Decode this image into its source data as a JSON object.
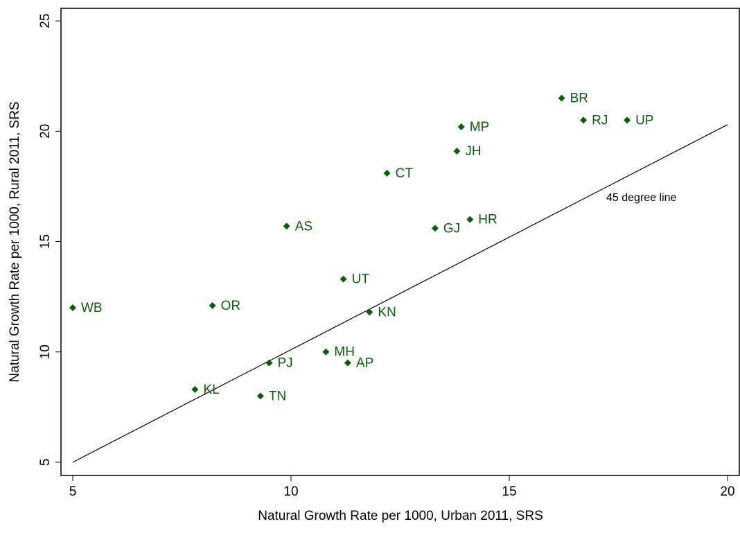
{
  "chart_data": {
    "type": "scatter",
    "xlabel": "Natural Growth Rate per 1000, Urban 2011, SRS",
    "ylabel": "Natural Growth Rate per 1000, Rural 2011, SRS",
    "xlim": [
      4.73,
      20.27
    ],
    "ylim": [
      4.4,
      25.57
    ],
    "xticks": [
      5,
      10,
      15,
      20
    ],
    "yticks": [
      5,
      10,
      15,
      20,
      25
    ],
    "color": "#0b5d0b",
    "labels": [
      "WB",
      "OR",
      "KL",
      "TN",
      "PJ",
      "MH",
      "AP",
      "AS",
      "UT",
      "KN",
      "CT",
      "GJ",
      "HR",
      "JH",
      "MP",
      "BR",
      "RJ",
      "UP"
    ],
    "x": [
      5,
      8.2,
      7.8,
      9.3,
      9.5,
      10.8,
      11.3,
      9.9,
      11.2,
      11.8,
      12.2,
      13.3,
      14.1,
      13.8,
      13.9,
      16.2,
      16.7,
      17.7
    ],
    "y": [
      12.0,
      12.1,
      8.3,
      8.0,
      9.5,
      10.0,
      9.5,
      15.7,
      13.3,
      11.8,
      18.1,
      15.6,
      16.0,
      19.1,
      20.2,
      21.5,
      20.5,
      20.5
    ],
    "reference_line": {
      "label": "45 degree line",
      "x": [
        5,
        20
      ],
      "y": [
        5,
        20.3
      ]
    }
  }
}
